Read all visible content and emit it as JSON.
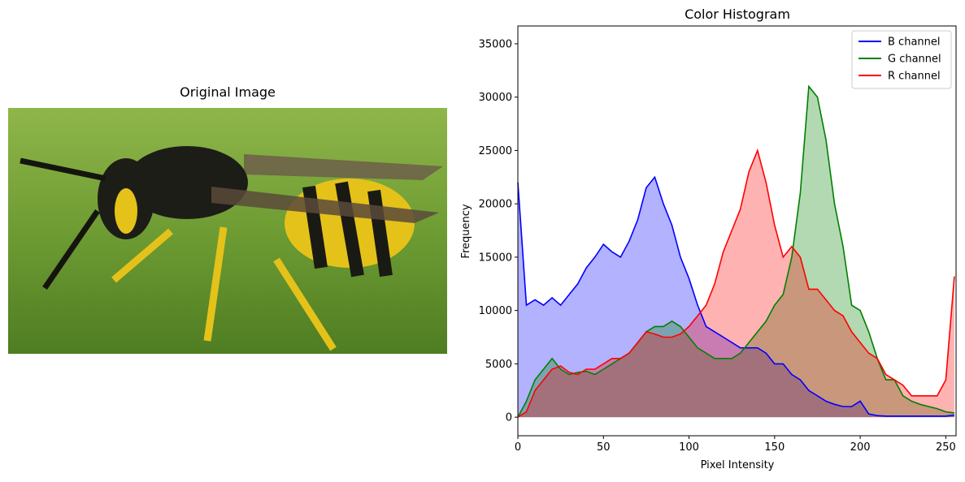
{
  "chart_data": [
    {
      "type": "image",
      "title": "Original Image"
    },
    {
      "type": "line",
      "title": "Color Histogram",
      "x_label": "Pixel Intensity",
      "y_label": "Frequency",
      "x": [
        0,
        5,
        10,
        15,
        20,
        25,
        30,
        35,
        40,
        45,
        50,
        55,
        60,
        65,
        70,
        75,
        80,
        85,
        90,
        95,
        100,
        105,
        110,
        115,
        120,
        125,
        130,
        135,
        140,
        145,
        150,
        155,
        160,
        165,
        170,
        175,
        180,
        185,
        190,
        195,
        200,
        205,
        210,
        215,
        220,
        225,
        230,
        235,
        240,
        245,
        250,
        255
      ],
      "series": [
        {
          "name": "B channel",
          "color": "#0000ff",
          "values": [
            22000,
            10500,
            11000,
            10500,
            11200,
            10500,
            11500,
            12500,
            14000,
            15000,
            16200,
            15500,
            15000,
            16500,
            18500,
            21500,
            22500,
            20000,
            18000,
            15000,
            13000,
            10500,
            8500,
            8000,
            7500,
            7000,
            6500,
            6500,
            6500,
            6000,
            5000,
            5000,
            4000,
            3500,
            2500,
            2000,
            1500,
            1200,
            1000,
            1000,
            1500,
            300,
            150,
            100,
            100,
            100,
            100,
            100,
            100,
            100,
            100,
            200
          ]
        },
        {
          "name": "G channel",
          "color": "#008000",
          "values": [
            0,
            1500,
            3500,
            4500,
            5500,
            4500,
            4000,
            4200,
            4300,
            4000,
            4500,
            5000,
            5500,
            6000,
            7000,
            8000,
            8500,
            8500,
            9000,
            8500,
            7500,
            6500,
            6000,
            5500,
            5500,
            5500,
            6000,
            7000,
            8000,
            9000,
            10500,
            11500,
            15000,
            21000,
            31000,
            30000,
            26000,
            20000,
            16000,
            10500,
            10000,
            8000,
            5500,
            3500,
            3500,
            2000,
            1500,
            1200,
            1000,
            800,
            500,
            400
          ]
        },
        {
          "name": "R channel",
          "color": "#ff0000",
          "values": [
            0,
            500,
            2500,
            3500,
            4500,
            4800,
            4200,
            4000,
            4500,
            4500,
            5000,
            5500,
            5500,
            6000,
            7000,
            8000,
            7800,
            7500,
            7500,
            7800,
            8500,
            9500,
            10500,
            12500,
            15500,
            17500,
            19500,
            23000,
            25000,
            22000,
            18000,
            15000,
            16000,
            15000,
            12000,
            12000,
            11000,
            10000,
            9500,
            8000,
            7000,
            6000,
            5500,
            4000,
            3500,
            3000,
            2000,
            2000,
            2000,
            2000,
            3500,
            13200
          ]
        }
      ],
      "xlim": [
        0,
        256
      ],
      "ylim": [
        -1740,
        36670
      ],
      "xticks": [
        0,
        50,
        100,
        150,
        200,
        250
      ],
      "yticks": [
        0,
        5000,
        10000,
        15000,
        20000,
        25000,
        30000,
        35000
      ],
      "legend": "upper right"
    }
  ]
}
